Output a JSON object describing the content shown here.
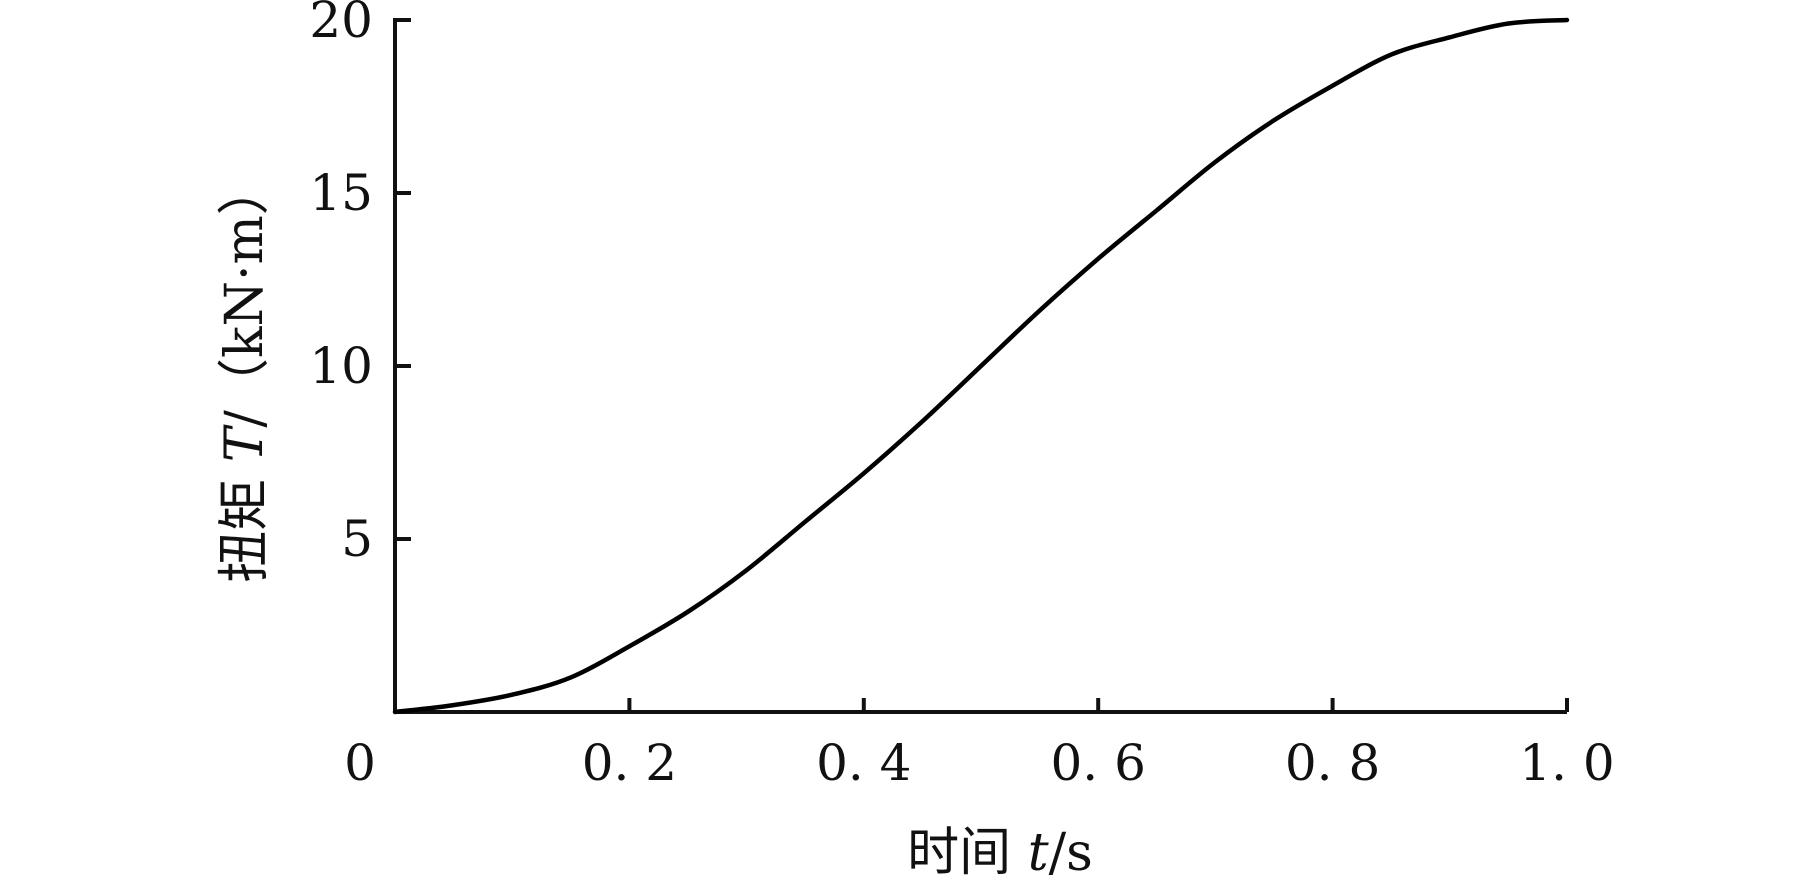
{
  "chart_data": {
    "type": "line",
    "title": "",
    "xlabel": "时间 t/s",
    "ylabel": "扭矩 T/（kN·m）",
    "xlabel_parts": {
      "prefix": "时间 ",
      "var": "t",
      "unit": "/s"
    },
    "ylabel_parts": {
      "prefix": "扭矩 ",
      "var": "T",
      "unit": "/（kN·m）"
    },
    "xlim": [
      0,
      1.0
    ],
    "ylim": [
      0,
      20
    ],
    "x_ticks": [
      0,
      0.2,
      0.4,
      0.6,
      0.8,
      1.0
    ],
    "x_tick_labels": [
      "0",
      "0. 2",
      "0. 4",
      "0. 6",
      "0. 8",
      "1. 0"
    ],
    "y_ticks": [
      5,
      10,
      15,
      20
    ],
    "y_tick_labels": [
      "5",
      "10",
      "15",
      "20"
    ],
    "grid": false,
    "legend": "none",
    "series": [
      {
        "x": [
          0,
          0.05,
          0.1,
          0.15,
          0.2,
          0.25,
          0.3,
          0.35,
          0.4,
          0.45,
          0.5,
          0.55,
          0.6,
          0.65,
          0.7,
          0.75,
          0.8,
          0.85,
          0.9,
          0.95,
          1.0
        ],
        "values": [
          0,
          0.2,
          0.5,
          1.0,
          1.9,
          2.9,
          4.1,
          5.5,
          6.9,
          8.4,
          10.0,
          11.6,
          13.1,
          14.5,
          15.9,
          17.1,
          18.1,
          19.0,
          19.5,
          19.9,
          20.0
        ],
        "color": "#000000"
      }
    ]
  }
}
